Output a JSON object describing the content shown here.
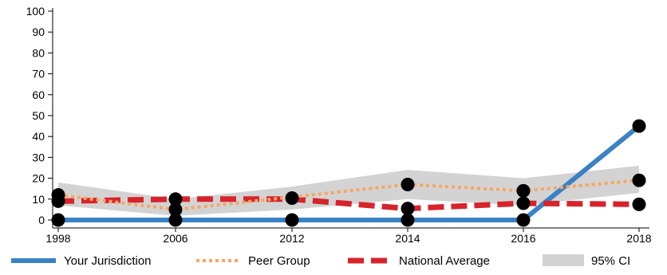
{
  "chart_data": {
    "type": "line",
    "categories": [
      "1998",
      "2006",
      "2012",
      "2014",
      "2016",
      "2018"
    ],
    "ylim": [
      0,
      100
    ],
    "yticks": [
      0,
      10,
      20,
      30,
      40,
      50,
      60,
      70,
      80,
      90,
      100
    ],
    "grid": false,
    "legend_position": "bottom",
    "series": [
      {
        "name": "Your Jurisdiction",
        "color": "#3a82c4",
        "style": "solid",
        "values": [
          0,
          0,
          0,
          0,
          0,
          45
        ]
      },
      {
        "name": "Peer Group",
        "color": "#f5a765",
        "style": "dotted",
        "values": [
          12,
          5,
          11,
          17,
          14,
          19
        ]
      },
      {
        "name": "National Average",
        "color": "#d7242b",
        "style": "dashed",
        "values": [
          9,
          10,
          10,
          5.5,
          8,
          7.5
        ]
      }
    ],
    "ci": {
      "name": "95% CI",
      "color": "#d3d3d3",
      "lower": [
        7,
        2,
        5,
        10,
        7,
        13
      ],
      "upper": [
        18,
        10,
        16,
        24,
        20,
        26
      ]
    },
    "markers": [
      {
        "x": "1998",
        "values": [
          0,
          9,
          12
        ]
      },
      {
        "x": "2006",
        "values": [
          0,
          5,
          10
        ]
      },
      {
        "x": "2012",
        "values": [
          0,
          10.5
        ]
      },
      {
        "x": "2014",
        "values": [
          0,
          5.5,
          17
        ]
      },
      {
        "x": "2016",
        "values": [
          0,
          8,
          14
        ]
      },
      {
        "x": "2018",
        "values": [
          7.5,
          19,
          45
        ]
      }
    ],
    "marker_color": "#000000"
  }
}
